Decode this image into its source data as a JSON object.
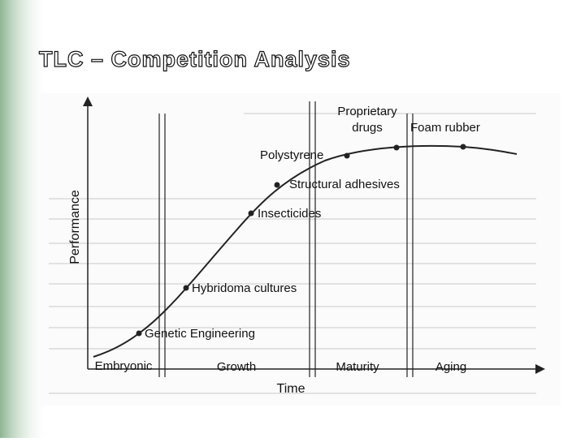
{
  "header": {
    "title": "TLC – Competition Analysis"
  },
  "diagram": {
    "y_axis_label": "Performance",
    "x_axis_label": "Time",
    "stages": [
      "Embryonic",
      "Growth",
      "Maturity",
      "Aging"
    ],
    "points": [
      {
        "label": "Genetic Engineering"
      },
      {
        "label": "Hybridoma cultures"
      },
      {
        "label": "Insecticides"
      },
      {
        "label": "Structural adhesives"
      },
      {
        "label": "Polystyrene"
      },
      {
        "label_lines": [
          "Proprietary",
          "drugs"
        ]
      },
      {
        "label": "Foam rubber"
      }
    ]
  }
}
